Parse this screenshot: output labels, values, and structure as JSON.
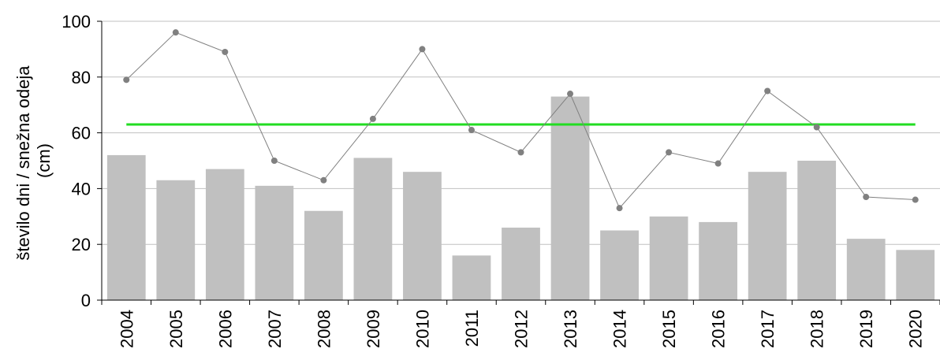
{
  "chart_data": {
    "type": "bar",
    "title": "",
    "xlabel": "",
    "ylabel": [
      "število dni / snežna odeja",
      "(cm)"
    ],
    "ylim": [
      0,
      100
    ],
    "yticks": [
      "0",
      "20",
      "40",
      "60",
      "80",
      "100"
    ],
    "categories": [
      "2004",
      "2005",
      "2006",
      "2007",
      "2008",
      "2009",
      "2010",
      "2011",
      "2012",
      "2013",
      "2014",
      "2015",
      "2016",
      "2017",
      "2018",
      "2019",
      "2020"
    ],
    "series": [
      {
        "type": "bar",
        "color": "#c0c0c0",
        "values": [
          52,
          43,
          47,
          41,
          32,
          51,
          46,
          16,
          26,
          73,
          25,
          30,
          28,
          46,
          50,
          22,
          18
        ]
      },
      {
        "type": "line",
        "color": "#808080",
        "marker": "circle",
        "values": [
          79,
          96,
          89,
          50,
          43,
          65,
          90,
          61,
          53,
          74,
          33,
          53,
          49,
          75,
          62,
          37,
          36
        ]
      },
      {
        "type": "reference-line",
        "color": "#22dd22",
        "value": 63
      }
    ],
    "grid": true,
    "legend": "none"
  }
}
